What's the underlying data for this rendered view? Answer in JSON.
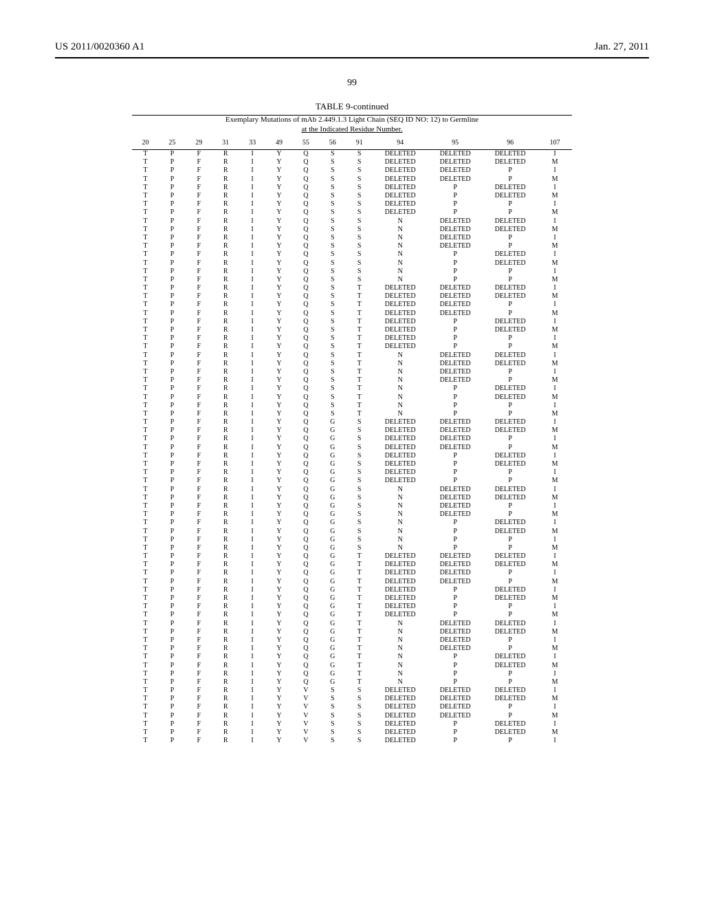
{
  "header": {
    "left": "US 2011/0020360 A1",
    "right": "Jan. 27, 2011"
  },
  "page_number": "99",
  "table": {
    "title": "TABLE 9-continued",
    "subtitle_line1": "Exemplary Mutations of mAb 2.449.1.3 Light Chain (SEQ ID NO: 12) to Germline",
    "subtitle_line2": "at the Indicated Residue Number.",
    "columns": [
      "20",
      "25",
      "29",
      "31",
      "33",
      "49",
      "55",
      "56",
      "91",
      "94",
      "95",
      "96",
      "107"
    ],
    "base": [
      "T",
      "P",
      "F",
      "R",
      "I",
      "Y"
    ],
    "rows": []
  }
}
